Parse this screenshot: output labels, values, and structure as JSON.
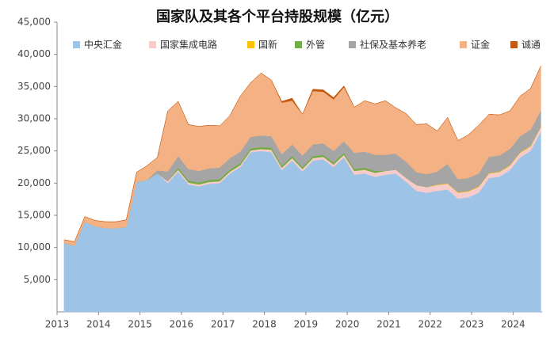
{
  "chart_data": {
    "type": "stacked_area",
    "title": "国家队及其各个平台持股规模（亿元）",
    "x": [
      2013.17,
      2013.42,
      2013.67,
      2013.92,
      2014.17,
      2014.42,
      2014.67,
      2014.92,
      2015.17,
      2015.42,
      2015.67,
      2015.92,
      2016.17,
      2016.42,
      2016.67,
      2016.92,
      2017.17,
      2017.42,
      2017.67,
      2017.92,
      2018.17,
      2018.42,
      2018.67,
      2018.92,
      2019.17,
      2019.42,
      2019.67,
      2019.92,
      2020.17,
      2020.42,
      2020.67,
      2020.92,
      2021.17,
      2021.42,
      2021.67,
      2021.92,
      2022.17,
      2022.42,
      2022.67,
      2022.92,
      2023.17,
      2023.42,
      2023.67,
      2023.92,
      2024.17,
      2024.42,
      2024.67
    ],
    "series": [
      {
        "name": "中央汇金",
        "color": "#9dc3e6",
        "values": [
          10700,
          10300,
          14000,
          13300,
          13000,
          13000,
          13200,
          20200,
          20500,
          21500,
          20000,
          21800,
          19800,
          19500,
          19900,
          20000,
          21500,
          22500,
          24800,
          25000,
          24800,
          22000,
          23500,
          21800,
          23500,
          23700,
          22500,
          24000,
          21300,
          21500,
          21000,
          21300,
          21500,
          20200,
          18800,
          18500,
          18800,
          19000,
          17600,
          17800,
          18500,
          20800,
          21000,
          22000,
          24000,
          25000,
          28000
        ]
      },
      {
        "name": "国家集成电路",
        "color": "#f8cbcb",
        "values": [
          0,
          0,
          0,
          0,
          0,
          0,
          0,
          0,
          0,
          0,
          300,
          300,
          300,
          300,
          300,
          300,
          300,
          300,
          300,
          300,
          400,
          400,
          400,
          400,
          400,
          400,
          400,
          400,
          600,
          600,
          600,
          600,
          600,
          600,
          900,
          900,
          900,
          900,
          900,
          900,
          900,
          700,
          700,
          700,
          700,
          700,
          700
        ]
      },
      {
        "name": "国新",
        "color": "#ffc000",
        "values": [
          0,
          0,
          0,
          0,
          0,
          0,
          0,
          0,
          0,
          0,
          0,
          0,
          0,
          0,
          0,
          0,
          0,
          0,
          0,
          0,
          0,
          0,
          0,
          0,
          0,
          0,
          0,
          0,
          0,
          0,
          0,
          0,
          0,
          0,
          0,
          0,
          100,
          100,
          100,
          100,
          100,
          100,
          100,
          100,
          100,
          100,
          100
        ]
      },
      {
        "name": "外管",
        "color": "#70ad47",
        "values": [
          0,
          0,
          0,
          0,
          0,
          0,
          0,
          0,
          0,
          0,
          0,
          300,
          300,
          300,
          300,
          300,
          300,
          300,
          300,
          300,
          300,
          300,
          300,
          300,
          300,
          300,
          300,
          300,
          300,
          300,
          300,
          0,
          0,
          0,
          0,
          0,
          0,
          0,
          0,
          0,
          0,
          0,
          0,
          0,
          0,
          0,
          0
        ]
      },
      {
        "name": "社保及基本养老",
        "color": "#a5a5a5",
        "values": [
          0,
          0,
          0,
          0,
          0,
          0,
          0,
          0,
          0,
          500,
          1500,
          1800,
          1800,
          1800,
          1800,
          1800,
          1800,
          1800,
          1800,
          1800,
          1800,
          1800,
          1800,
          1800,
          1800,
          1800,
          1800,
          1800,
          2500,
          2500,
          2500,
          2500,
          2500,
          2500,
          2000,
          2000,
          2000,
          3000,
          2000,
          2000,
          2000,
          2500,
          2500,
          2500,
          2500,
          2500,
          2500
        ]
      },
      {
        "name": "证金",
        "color": "#f4b183",
        "values": [
          500,
          600,
          800,
          900,
          1000,
          1000,
          1100,
          1500,
          2200,
          2000,
          9400,
          8500,
          6900,
          6900,
          6700,
          6500,
          6600,
          8600,
          8400,
          9700,
          8700,
          8000,
          6800,
          6400,
          8300,
          8000,
          8000,
          8400,
          7100,
          7900,
          7900,
          8400,
          7100,
          7500,
          7400,
          7800,
          6300,
          7200,
          6000,
          6700,
          7500,
          6600,
          6300,
          5900,
          6200,
          6400,
          6900
        ]
      },
      {
        "name": "诚通",
        "color": "#c55a11",
        "values": [
          0,
          0,
          0,
          0,
          0,
          0,
          0,
          0,
          0,
          0,
          0,
          0,
          0,
          0,
          0,
          0,
          0,
          0,
          0,
          0,
          0,
          200,
          400,
          0,
          300,
          300,
          300,
          200,
          0,
          0,
          0,
          0,
          0,
          0,
          0,
          0,
          0,
          0,
          0,
          0,
          0,
          0,
          0,
          0,
          0,
          0,
          0
        ]
      }
    ],
    "xlim": [
      2013,
      2024.7
    ],
    "xticks": [
      2013,
      2014,
      2015,
      2016,
      2017,
      2018,
      2019,
      2020,
      2021,
      2022,
      2023,
      2024
    ],
    "ylim": [
      0,
      45000
    ],
    "yticks": [
      {
        "value": 5000,
        "label": "5,000"
      },
      {
        "value": 10000,
        "label": "10,000"
      },
      {
        "value": 15000,
        "label": "15,000"
      },
      {
        "value": 20000,
        "label": "20,000"
      },
      {
        "value": 25000,
        "label": "25,000"
      },
      {
        "value": 30000,
        "label": "30,000"
      },
      {
        "value": 35000,
        "label": "35,000"
      },
      {
        "value": 40000,
        "label": "40,000"
      },
      {
        "value": 45000,
        "label": "45,000"
      }
    ],
    "legend": "top"
  }
}
